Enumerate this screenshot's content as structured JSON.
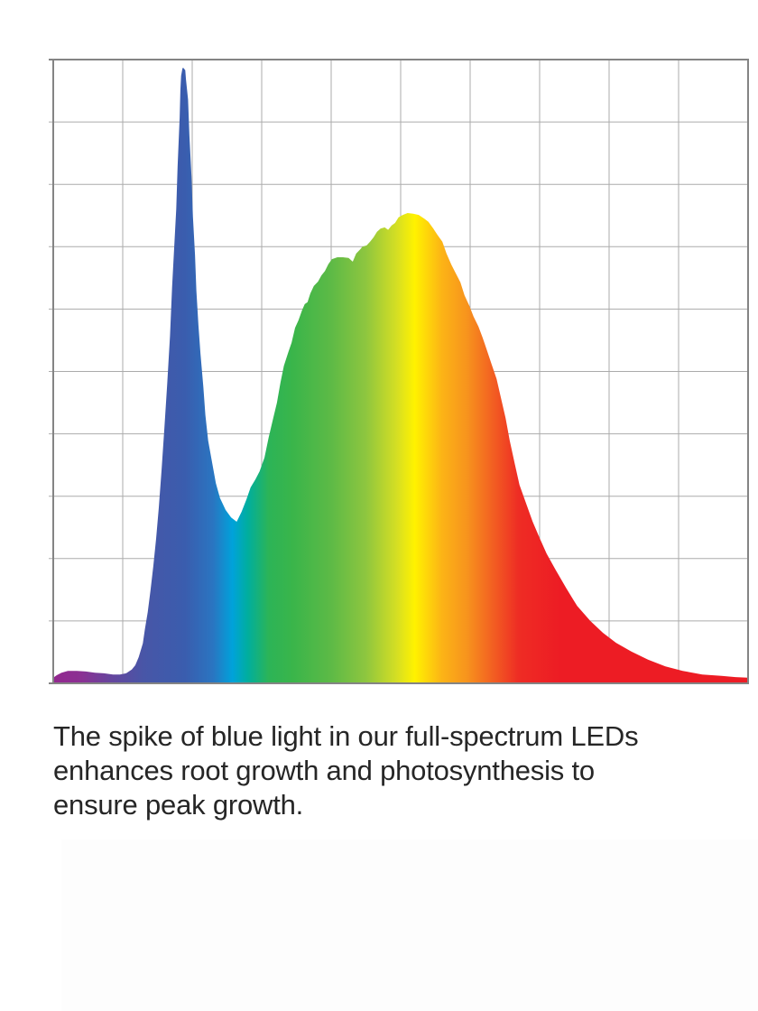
{
  "page": {
    "background": "#ffffff"
  },
  "caption": {
    "text_color": "#262626",
    "lines": [
      "The spike of blue light in our full-spectrum LEDs",
      "enhances root growth and photosynthesis to",
      "ensure peak growth."
    ]
  },
  "chart_data": {
    "type": "area",
    "title": "",
    "xlabel": "",
    "ylabel": "",
    "tick_labels": "none visible",
    "x_range": [
      0,
      1
    ],
    "y_range": [
      0,
      1
    ],
    "grid": {
      "visible": true,
      "columns": 10,
      "rows": 10,
      "line_color": "#ababab",
      "border_color": "#848484",
      "tick_color": "#9a9a9a",
      "left_tick_length": 5
    },
    "legend": "none",
    "description": "Full-spectrum LED spectral power distribution: rainbow-gradient area with a sharp blue spike peaking near 0.99 intensity at ~19% of the x-axis, a dip to ~0.26, a broad green-to-yellow hump peaking at ~0.75 near mid-chart, and a long red decaying tail to the right edge",
    "spectrum_gradient_stops": [
      [
        0.0,
        "#93278f"
      ],
      [
        0.04,
        "#8b3093"
      ],
      [
        0.085,
        "#64469e"
      ],
      [
        0.13,
        "#4856a7"
      ],
      [
        0.19,
        "#3a5dae"
      ],
      [
        0.23,
        "#2a75c1"
      ],
      [
        0.258,
        "#00a2da"
      ],
      [
        0.28,
        "#00ae9e"
      ],
      [
        0.31,
        "#2cb457"
      ],
      [
        0.345,
        "#3ab54a"
      ],
      [
        0.4,
        "#5dba46"
      ],
      [
        0.45,
        "#8ec63f"
      ],
      [
        0.495,
        "#d6df23"
      ],
      [
        0.52,
        "#fff200"
      ],
      [
        0.56,
        "#fcb316"
      ],
      [
        0.595,
        "#f7941d"
      ],
      [
        0.635,
        "#f25c22"
      ],
      [
        0.67,
        "#ee2c24"
      ],
      [
        0.73,
        "#ed1c24"
      ],
      [
        1.0,
        "#ed1c24"
      ]
    ],
    "series": [
      {
        "name": "led-spectrum",
        "points": [
          [
            0.0,
            0.009
          ],
          [
            0.005,
            0.013
          ],
          [
            0.012,
            0.017
          ],
          [
            0.021,
            0.02
          ],
          [
            0.034,
            0.02
          ],
          [
            0.047,
            0.019
          ],
          [
            0.06,
            0.017
          ],
          [
            0.073,
            0.016
          ],
          [
            0.086,
            0.014
          ],
          [
            0.096,
            0.014
          ],
          [
            0.105,
            0.016
          ],
          [
            0.113,
            0.022
          ],
          [
            0.118,
            0.029
          ],
          [
            0.123,
            0.042
          ],
          [
            0.129,
            0.064
          ],
          [
            0.132,
            0.087
          ],
          [
            0.136,
            0.114
          ],
          [
            0.14,
            0.149
          ],
          [
            0.144,
            0.188
          ],
          [
            0.148,
            0.232
          ],
          [
            0.152,
            0.282
          ],
          [
            0.156,
            0.343
          ],
          [
            0.16,
            0.41
          ],
          [
            0.164,
            0.48
          ],
          [
            0.168,
            0.557
          ],
          [
            0.171,
            0.635
          ],
          [
            0.174,
            0.698
          ],
          [
            0.177,
            0.76
          ],
          [
            0.179,
            0.828
          ],
          [
            0.182,
            0.907
          ],
          [
            0.183,
            0.951
          ],
          [
            0.184,
            0.974
          ],
          [
            0.186,
            0.986
          ],
          [
            0.187,
            0.987
          ],
          [
            0.19,
            0.983
          ],
          [
            0.191,
            0.968
          ],
          [
            0.194,
            0.936
          ],
          [
            0.196,
            0.878
          ],
          [
            0.199,
            0.813
          ],
          [
            0.201,
            0.748
          ],
          [
            0.204,
            0.687
          ],
          [
            0.206,
            0.63
          ],
          [
            0.209,
            0.574
          ],
          [
            0.212,
            0.528
          ],
          [
            0.216,
            0.476
          ],
          [
            0.219,
            0.43
          ],
          [
            0.223,
            0.389
          ],
          [
            0.229,
            0.352
          ],
          [
            0.234,
            0.321
          ],
          [
            0.24,
            0.297
          ],
          [
            0.248,
            0.278
          ],
          [
            0.256,
            0.266
          ],
          [
            0.264,
            0.259
          ],
          [
            0.271,
            0.275
          ],
          [
            0.278,
            0.295
          ],
          [
            0.284,
            0.314
          ],
          [
            0.291,
            0.327
          ],
          [
            0.297,
            0.34
          ],
          [
            0.304,
            0.362
          ],
          [
            0.31,
            0.394
          ],
          [
            0.317,
            0.427
          ],
          [
            0.322,
            0.45
          ],
          [
            0.327,
            0.482
          ],
          [
            0.332,
            0.509
          ],
          [
            0.338,
            0.53
          ],
          [
            0.343,
            0.546
          ],
          [
            0.348,
            0.57
          ],
          [
            0.353,
            0.582
          ],
          [
            0.358,
            0.598
          ],
          [
            0.362,
            0.608
          ],
          [
            0.366,
            0.611
          ],
          [
            0.37,
            0.625
          ],
          [
            0.375,
            0.637
          ],
          [
            0.381,
            0.644
          ],
          [
            0.386,
            0.654
          ],
          [
            0.391,
            0.661
          ],
          [
            0.396,
            0.672
          ],
          [
            0.401,
            0.68
          ],
          [
            0.409,
            0.683
          ],
          [
            0.417,
            0.683
          ],
          [
            0.425,
            0.682
          ],
          [
            0.431,
            0.676
          ],
          [
            0.436,
            0.689
          ],
          [
            0.442,
            0.696
          ],
          [
            0.445,
            0.7
          ],
          [
            0.451,
            0.702
          ],
          [
            0.456,
            0.708
          ],
          [
            0.461,
            0.715
          ],
          [
            0.466,
            0.724
          ],
          [
            0.471,
            0.729
          ],
          [
            0.477,
            0.731
          ],
          [
            0.482,
            0.727
          ],
          [
            0.487,
            0.734
          ],
          [
            0.492,
            0.738
          ],
          [
            0.497,
            0.747
          ],
          [
            0.503,
            0.751
          ],
          [
            0.51,
            0.754
          ],
          [
            0.518,
            0.753
          ],
          [
            0.526,
            0.751
          ],
          [
            0.534,
            0.745
          ],
          [
            0.54,
            0.74
          ],
          [
            0.547,
            0.729
          ],
          [
            0.553,
            0.719
          ],
          [
            0.56,
            0.708
          ],
          [
            0.566,
            0.689
          ],
          [
            0.573,
            0.671
          ],
          [
            0.579,
            0.658
          ],
          [
            0.586,
            0.643
          ],
          [
            0.592,
            0.622
          ],
          [
            0.599,
            0.605
          ],
          [
            0.605,
            0.588
          ],
          [
            0.612,
            0.572
          ],
          [
            0.618,
            0.554
          ],
          [
            0.625,
            0.531
          ],
          [
            0.631,
            0.511
          ],
          [
            0.638,
            0.488
          ],
          [
            0.644,
            0.459
          ],
          [
            0.651,
            0.425
          ],
          [
            0.657,
            0.389
          ],
          [
            0.664,
            0.353
          ],
          [
            0.671,
            0.318
          ],
          [
            0.681,
            0.287
          ],
          [
            0.69,
            0.259
          ],
          [
            0.7,
            0.233
          ],
          [
            0.71,
            0.208
          ],
          [
            0.723,
            0.182
          ],
          [
            0.738,
            0.153
          ],
          [
            0.754,
            0.124
          ],
          [
            0.773,
            0.1
          ],
          [
            0.791,
            0.081
          ],
          [
            0.81,
            0.065
          ],
          [
            0.832,
            0.051
          ],
          [
            0.856,
            0.038
          ],
          [
            0.881,
            0.027
          ],
          [
            0.906,
            0.02
          ],
          [
            0.934,
            0.014
          ],
          [
            0.962,
            0.012
          ],
          [
            0.982,
            0.01
          ],
          [
            1.0,
            0.009
          ]
        ]
      }
    ]
  }
}
